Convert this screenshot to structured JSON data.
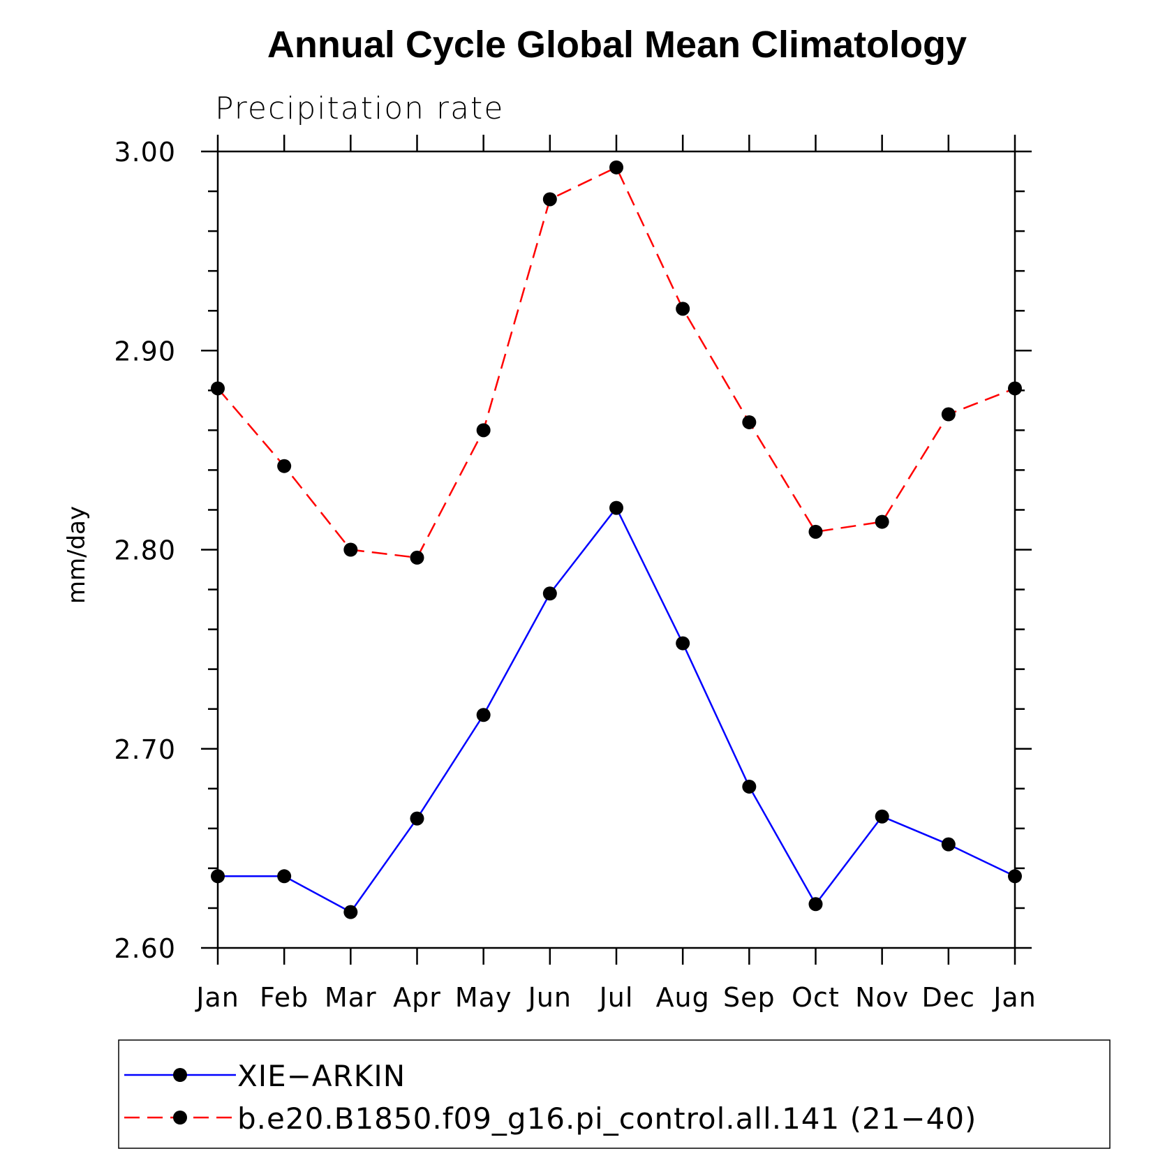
{
  "chart_data": {
    "type": "line",
    "title": "Annual Cycle Global Mean Climatology",
    "subtitle": "Precipitation rate",
    "ylabel": "mm/day",
    "xlabel": "",
    "ylim": [
      2.6,
      3.0
    ],
    "y_ticks": [
      "2.60",
      "2.70",
      "2.80",
      "2.90",
      "3.00"
    ],
    "categories": [
      "Jan",
      "Feb",
      "Mar",
      "Apr",
      "May",
      "Jun",
      "Jul",
      "Aug",
      "Sep",
      "Oct",
      "Nov",
      "Dec",
      "Jan"
    ],
    "grid": false,
    "legend_position": "bottom",
    "series": [
      {
        "name": "XIE−ARKIN",
        "color": "#0000ff",
        "dashed": false,
        "marker": "filled-circle",
        "values": [
          2.636,
          2.636,
          2.618,
          2.665,
          2.717,
          2.778,
          2.821,
          2.753,
          2.681,
          2.622,
          2.666,
          2.652,
          2.636
        ]
      },
      {
        "name": "b.e20.B1850.f09_g16.pi_control.all.141 (21−40)",
        "color": "#ff0000",
        "dashed": true,
        "marker": "filled-circle",
        "values": [
          2.881,
          2.842,
          2.8,
          2.796,
          2.86,
          2.976,
          2.992,
          2.921,
          2.864,
          2.809,
          2.814,
          2.868,
          2.881
        ]
      }
    ]
  }
}
